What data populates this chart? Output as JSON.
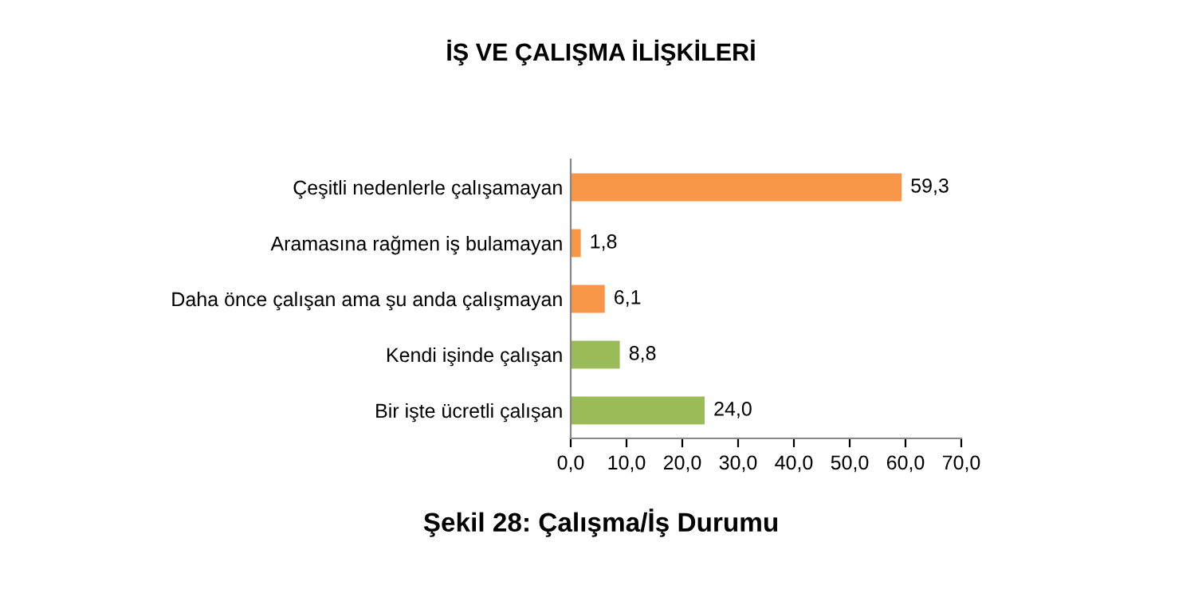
{
  "chart_data": {
    "type": "bar",
    "orientation": "horizontal",
    "title": "İŞ VE ÇALIŞMA İLİŞKİLERİ",
    "categories": [
      "Çeşitli nedenlerle çalışamayan",
      "Aramasına rağmen iş bulamayan",
      "Daha önce çalışan ama şu anda çalışmayan",
      "Kendi işinde çalışan",
      "Bir işte ücretli çalışan"
    ],
    "values": [
      59.3,
      1.8,
      6.1,
      8.8,
      24.0
    ],
    "colors": [
      "#f79646",
      "#f79646",
      "#f79646",
      "#9bbb59",
      "#9bbb59"
    ],
    "value_labels": [
      "59,3",
      "1,8",
      "6,1",
      "8,8",
      "24,0"
    ],
    "xlim": [
      0,
      70
    ],
    "xticks": [
      {
        "value": 0,
        "label": "0,0"
      },
      {
        "value": 10,
        "label": "10,0"
      },
      {
        "value": 20,
        "label": "20,0"
      },
      {
        "value": 30,
        "label": "30,0"
      },
      {
        "value": 40,
        "label": "40,0"
      },
      {
        "value": 50,
        "label": "50,0"
      },
      {
        "value": 60,
        "label": "60,0"
      },
      {
        "value": 70,
        "label": "70,0"
      }
    ],
    "grid": false,
    "annotations": [
      "Şekil 28: Çalışma/İş Durumu"
    ]
  }
}
